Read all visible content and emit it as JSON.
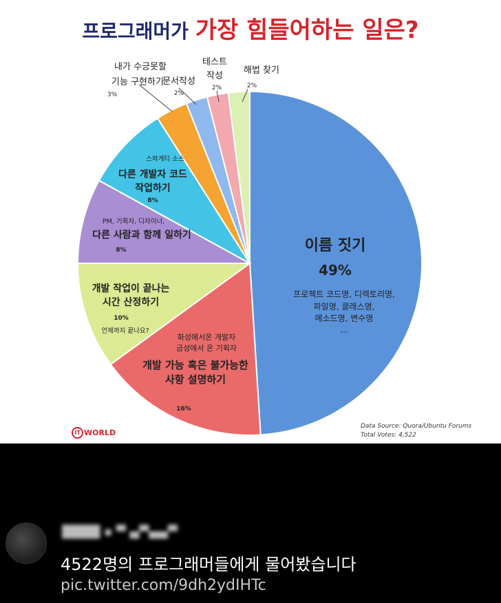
{
  "poster": {
    "title_part1": "프로그래머가 ",
    "title_part2": "가장 힘들어하는 일은?",
    "source": "Data Source: Quora/Ubuntu Forums",
    "total_votes": "Total Votes: 4,522",
    "logo_mark": "IT",
    "logo_text": "WORLD"
  },
  "chart_data": {
    "type": "pie",
    "title": "프로그래머가 가장 힘들어하는 일은?",
    "slices": [
      {
        "label": "이름 짓기",
        "value": 49,
        "value_label": "49%",
        "note_lines": [
          "프로젝트 코드명, 디렉토리명,",
          "파일명, 클래스명,",
          "메소드명, 변수명",
          "..."
        ],
        "color": "#5b93db"
      },
      {
        "label": "개발 가능 혹은 불가능한 사항 설명하기",
        "value": 16,
        "value_label": "16%",
        "note_lines": [
          "화성에서온 개발자",
          "금성에서 온 기획자"
        ],
        "color": "#ea6a6a"
      },
      {
        "label": "개발 작업이 끝나는 시간 산정하기",
        "value": 10,
        "value_label": "10%",
        "note_lines": [
          "언제까지 끝나요?"
        ],
        "color": "#dcea93"
      },
      {
        "label": "다른 사람과 함께 일하기",
        "value": 8,
        "value_label": "8%",
        "note_lines": [
          "PM, 기획자, 디자이너,"
        ],
        "color": "#a98ed4"
      },
      {
        "label": "다른 개발자 코드 작업하기",
        "value": 8,
        "value_label": "8%",
        "note_lines": [
          "스파게티 소스"
        ],
        "color": "#43c4e6"
      },
      {
        "label": "내가 수긍못할 기능 구현하기",
        "value": 3,
        "value_label": "3%",
        "note_lines": [],
        "color": "#f5a331"
      },
      {
        "label": "문서작성",
        "value": 2,
        "value_label": "2%",
        "note_lines": [],
        "color": "#8fb8ee"
      },
      {
        "label": "테스트 작성",
        "value": 2,
        "value_label": "2%",
        "note_lines": [],
        "color": "#f3a7ae"
      },
      {
        "label": "해법 찾기",
        "value": 2,
        "value_label": "2%",
        "note_lines": [],
        "color": "#dcf0b3"
      }
    ]
  },
  "tweet": {
    "author": "████ ▪ ▀ ▄▀▄▄▀",
    "text": "4522명의 프로그래머들에게 물어봤습니다",
    "link": "pic.twitter.com/9dh2ydIHTc"
  }
}
